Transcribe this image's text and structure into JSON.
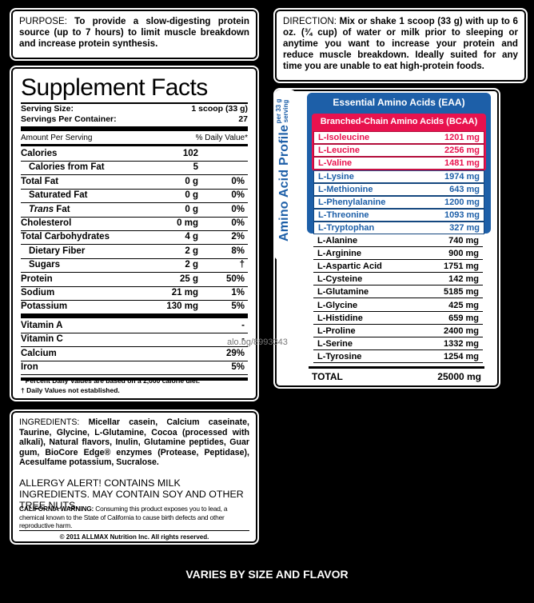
{
  "purpose": {
    "head": "PURPOSE:",
    "text": "To provide a slow-digesting protein source (up to 7 hours) to limit muscle breakdown and increase protein synthesis."
  },
  "direction": {
    "head": "DIRECTION:",
    "text": "Mix or shake 1 scoop (33 g) with up to 6 oz. (¾ cup) of water or milk prior to sleeping or anytime you want to increase your protein and reduce muscle breakdown. Ideally suited for any time you are unable to eat high-protein foods."
  },
  "facts": {
    "title": "Supplement Facts",
    "serving_size_label": "Serving Size:",
    "serving_size_value": "1 scoop (33 g)",
    "servings_label": "Servings Per Container:",
    "servings_value": "27",
    "amount_label": "Amount Per Serving",
    "dv_label": "% Daily Value*",
    "nutrients": [
      {
        "name": "Calories",
        "amount": "102",
        "dv": "",
        "indent": false
      },
      {
        "name": "Calories from Fat",
        "amount": "5",
        "dv": "",
        "indent": true
      },
      {
        "name": "Total Fat",
        "amount": "0 g",
        "dv": "0%",
        "indent": false
      },
      {
        "name": "Saturated Fat",
        "amount": "0 g",
        "dv": "0%",
        "indent": true
      },
      {
        "name": "Trans Fat",
        "amount": "0 g",
        "dv": "0%",
        "indent": true
      },
      {
        "name": "Cholesterol",
        "amount": "0 mg",
        "dv": "0%",
        "indent": false
      },
      {
        "name": "Total Carbohydrates",
        "amount": "4 g",
        "dv": "2%",
        "indent": false
      },
      {
        "name": "Dietary Fiber",
        "amount": "2 g",
        "dv": "8%",
        "indent": true
      },
      {
        "name": "Sugars",
        "amount": "2 g",
        "dv": "†",
        "indent": true
      },
      {
        "name": "Protein",
        "amount": "25 g",
        "dv": "50%",
        "indent": false
      },
      {
        "name": "Sodium",
        "amount": "21 mg",
        "dv": "1%",
        "indent": false
      },
      {
        "name": "Potassium",
        "amount": "130 mg",
        "dv": "5%",
        "indent": false
      },
      {
        "name": "Vitamin A",
        "amount": "",
        "dv": "-",
        "indent": false
      },
      {
        "name": "Vitamin C",
        "amount": "",
        "dv": "-",
        "indent": false
      },
      {
        "name": "Calcium",
        "amount": "",
        "dv": "29%",
        "indent": false
      },
      {
        "name": "Iron",
        "amount": "",
        "dv": "5%",
        "indent": false
      }
    ],
    "footnote1": "* Percent Daily Values are based on a 2,000 calorie diet.",
    "footnote2": "† Daily Values not established."
  },
  "ingredients": {
    "head": "INGREDIENTS:",
    "text": "Micellar casein, Calcium caseinate, Taurine, Glycine, L-Glutamine, Cocoa (processed with alkali), Natural flavors, Inulin, Glutamine peptides, Guar gum, BioCore Edge® enzymes (Protease, Peptidase), Acesulfame potassium, Sucralose.",
    "allergy": "ALLERGY ALERT! CONTAINS MILK INGREDIENTS. MAY CONTAIN SOY AND OTHER TREE NUTS.",
    "ca_head": "CALIFORNIA WARNING:",
    "ca_text": "Consuming this product exposes you to lead, a chemical known to the State of California to cause birth defects and other reproductive harm.",
    "copyright": "© 2011 ALLMAX Nutrition Inc. All rights reserved."
  },
  "amino": {
    "profile_label": "Amino Acid Profile",
    "per_label": "per 33 g serving",
    "eaa_head": "Essential Amino Acids (EAA)",
    "bcaa_head": "Branched-Chain Amino Acids (BCAA)",
    "bcaa": [
      {
        "name": "L-Isoleucine",
        "value": "1201 mg"
      },
      {
        "name": "L-Leucine",
        "value": "2256 mg"
      },
      {
        "name": "L-Valine",
        "value": "1481 mg"
      }
    ],
    "eaa": [
      {
        "name": "L-Lysine",
        "value": "1974 mg"
      },
      {
        "name": "L-Methionine",
        "value": "643 mg"
      },
      {
        "name": "L-Phenylalanine",
        "value": "1200 mg"
      },
      {
        "name": "L-Threonine",
        "value": "1093 mg"
      },
      {
        "name": "L-Tryptophan",
        "value": "327 mg"
      }
    ],
    "other": [
      {
        "name": "L-Alanine",
        "value": "740 mg"
      },
      {
        "name": "L-Arginine",
        "value": "900 mg"
      },
      {
        "name": "L-Aspartic Acid",
        "value": "1751 mg"
      },
      {
        "name": "L-Cysteine",
        "value": "142 mg"
      },
      {
        "name": "L-Glutamine",
        "value": "5185 mg"
      },
      {
        "name": "L-Glycine",
        "value": "425 mg"
      },
      {
        "name": "L-Histidine",
        "value": "659 mg"
      },
      {
        "name": "L-Proline",
        "value": "2400 mg"
      },
      {
        "name": "L-Serine",
        "value": "1332 mg"
      },
      {
        "name": "L-Tyrosine",
        "value": "1254 mg"
      }
    ],
    "total_label": "TOTAL",
    "total_value": "25000 mg"
  },
  "watermark": "alo.bg/8993343",
  "footer": "VARIES BY SIZE AND FLAVOR",
  "colors": {
    "eaa": "#1d5fa8",
    "bcaa": "#e8124e"
  }
}
